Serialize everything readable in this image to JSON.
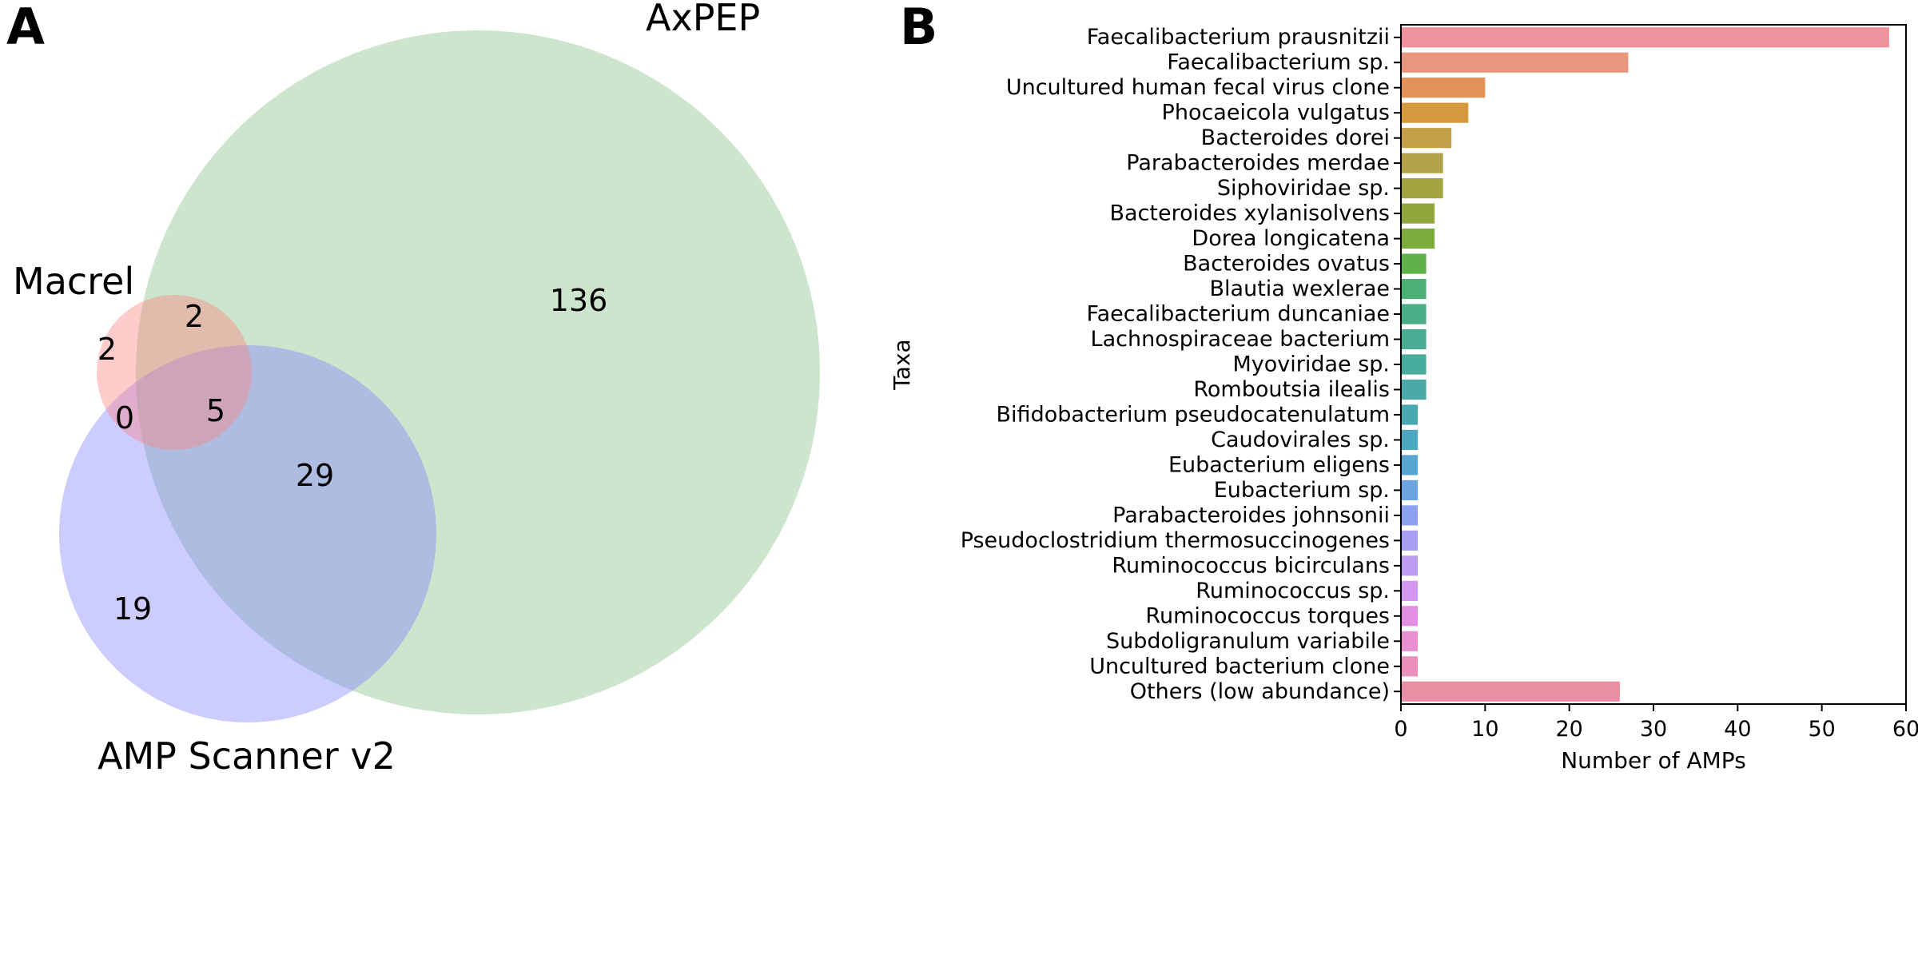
{
  "chart_data": [
    {
      "type": "venn",
      "panel": "A",
      "sets": [
        {
          "name": "Macrel",
          "color": "#ff7f7f"
        },
        {
          "name": "AxPEP",
          "color": "#7fbf7f"
        },
        {
          "name": "AMP Scanner v2",
          "color": "#7f7fff"
        }
      ],
      "regions": [
        {
          "id": "macrel_only",
          "label": "2"
        },
        {
          "id": "macrel_axpep",
          "label": "2"
        },
        {
          "id": "axpep_only",
          "label": "136"
        },
        {
          "id": "macrel_scanner",
          "label": "0"
        },
        {
          "id": "all_three",
          "label": "5"
        },
        {
          "id": "axpep_scanner",
          "label": "29"
        },
        {
          "id": "scanner_only",
          "label": "19"
        }
      ]
    },
    {
      "type": "bar",
      "orientation": "horizontal",
      "panel": "B",
      "xlabel": "Number of AMPs",
      "ylabel": "Taxa",
      "xlim": [
        0,
        60
      ],
      "xticks": [
        "0",
        "10",
        "20",
        "30",
        "40",
        "50",
        "60"
      ],
      "categories": [
        "Faecalibacterium prausnitzii",
        "Faecalibacterium sp.",
        "Uncultured human fecal virus clone",
        "Phocaeicola vulgatus",
        "Bacteroides dorei",
        "Parabacteroides merdae",
        "Siphoviridae sp.",
        "Bacteroides xylanisolvens",
        "Dorea longicatena",
        "Bacteroides ovatus",
        "Blautia wexlerae",
        "Faecalibacterium duncaniae",
        "Lachnospiraceae bacterium",
        "Myoviridae sp.",
        "Romboutsia ilealis",
        "Bifidobacterium pseudocatenulatum",
        "Caudovirales sp.",
        "Eubacterium eligens",
        "Eubacterium sp.",
        "Parabacteroides johnsonii",
        "Pseudoclostridium thermosuccinogenes",
        "Ruminococcus bicirculans",
        "Ruminococcus sp.",
        "Ruminococcus torques",
        "Subdoligranulum variabile",
        "Uncultured bacterium clone",
        "Others (low abundance)"
      ],
      "values": [
        58,
        27,
        10,
        8,
        6,
        5,
        5,
        4,
        4,
        3,
        3,
        3,
        3,
        3,
        3,
        2,
        2,
        2,
        2,
        2,
        2,
        2,
        2,
        2,
        2,
        2,
        26
      ],
      "colors": [
        "#f0929b",
        "#e9967f",
        "#e39357",
        "#d7993e",
        "#c49f46",
        "#b2a34a",
        "#a2a43f",
        "#90a73d",
        "#7dab3d",
        "#5fb149",
        "#4bb073",
        "#4aaf87",
        "#49ad93",
        "#48ac9d",
        "#49aaa7",
        "#4aa8b3",
        "#4ca7c0",
        "#56a5d2",
        "#6ca3e3",
        "#8aa2ef",
        "#a7a0f0",
        "#bd9df1",
        "#d297ef",
        "#e28fe4",
        "#e991d0",
        "#ea8fba",
        "#e98fa5"
      ]
    }
  ],
  "panels": {
    "a_letter": "A",
    "b_letter": "B"
  }
}
